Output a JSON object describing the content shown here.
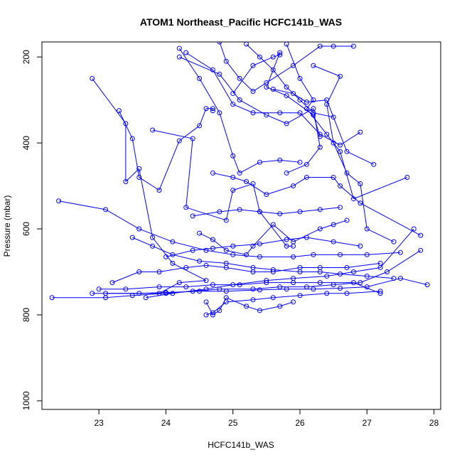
{
  "chart_data": {
    "type": "line",
    "title": "ATOM1 Northeast_Pacific HCFC141b_WAS",
    "xlabel": "HCFC141b_WAS",
    "ylabel": "Pressure (mbar)",
    "xlim": [
      22.15,
      28.1
    ],
    "ylim": [
      1020,
      165
    ],
    "y_reversed": true,
    "x_ticks": [
      23,
      24,
      25,
      26,
      27,
      28
    ],
    "y_ticks": [
      200,
      400,
      600,
      800,
      1000
    ],
    "grid": false,
    "legend": "none",
    "series_color": "#0000ff",
    "series": [
      {
        "x": [
          22.9,
          23.4,
          23.4,
          23.6,
          23.8,
          24.1,
          24.6,
          24.2,
          23.9,
          22.9
        ],
        "y": [
          250,
          355,
          490,
          460,
          620,
          680,
          720,
          725,
          750,
          750
        ]
      },
      {
        "x": [
          23.3,
          23.5,
          23.6,
          23.9,
          24.2,
          24.5,
          24.6,
          24.7,
          24.7
        ],
        "y": [
          325,
          390,
          480,
          510,
          395,
          360,
          320,
          320,
          325
        ]
      },
      {
        "x": [
          23.8,
          24.4,
          24.3,
          24.9,
          25.0,
          25.3,
          25.4,
          25.8,
          25.9
        ],
        "y": [
          370,
          390,
          550,
          580,
          510,
          495,
          560,
          640,
          640
        ]
      },
      {
        "x": [
          24.2,
          24.8,
          25.1,
          25.5,
          25.8,
          26.2,
          26.3,
          26.1,
          25.8
        ],
        "y": [
          200,
          240,
          300,
          335,
          355,
          320,
          410,
          450,
          470
        ]
      },
      {
        "x": [
          24.3,
          24.7,
          25.0,
          25.3,
          25.7,
          26.0,
          26.3,
          26.6,
          26.9
        ],
        "y": [
          190,
          230,
          310,
          330,
          330,
          330,
          380,
          405,
          375
        ]
      },
      {
        "x": [
          24.5,
          24.7,
          24.9,
          25.2,
          25.3,
          25.6,
          25.9,
          26.3,
          26.5,
          26.7
        ],
        "y": [
          610,
          625,
          650,
          660,
          640,
          590,
          630,
          600,
          590,
          580
        ]
      },
      {
        "x": [
          25.0,
          25.3,
          25.6,
          25.7,
          25.7,
          25.5,
          25.8,
          26.2,
          26.3
        ],
        "y": [
          285,
          220,
          200,
          195,
          190,
          270,
          290,
          335,
          385
        ]
      },
      {
        "x": [
          25.6,
          25.9,
          26.1,
          26.4,
          26.7,
          27.1
        ],
        "y": [
          275,
          285,
          305,
          300,
          420,
          450
        ]
      },
      {
        "x": [
          26.2,
          26.6,
          26.4,
          26.5,
          26.7,
          26.9,
          27.0,
          27.4
        ],
        "y": [
          220,
          245,
          310,
          400,
          470,
          495,
          600,
          630
        ]
      },
      {
        "x": [
          25.8,
          26.0,
          26.2,
          26.1,
          26.4,
          26.6,
          26.8,
          27.6
        ],
        "y": [
          170,
          250,
          300,
          320,
          380,
          420,
          530,
          480
        ]
      },
      {
        "x": [
          22.4,
          23.1,
          23.6,
          24.1,
          24.6,
          25.0,
          25.4,
          25.9,
          26.2,
          26.6,
          27.0,
          27.5
        ],
        "y": [
          535,
          555,
          600,
          630,
          650,
          660,
          665,
          665,
          660,
          660,
          660,
          655
        ]
      },
      {
        "x": [
          23.2,
          23.6,
          23.9,
          24.3,
          24.6,
          24.9,
          25.3,
          25.6,
          26.0,
          26.3,
          26.7,
          27.2
        ],
        "y": [
          725,
          700,
          700,
          690,
          685,
          690,
          700,
          700,
          690,
          690,
          690,
          680
        ]
      },
      {
        "x": [
          22.3,
          23.1,
          23.5,
          24.0,
          24.4,
          24.8,
          25.3,
          25.7,
          26.1,
          26.5,
          26.9,
          27.3,
          27.8
        ],
        "y": [
          760,
          760,
          755,
          750,
          745,
          740,
          740,
          735,
          735,
          730,
          725,
          700,
          650
        ]
      },
      {
        "x": [
          23.0,
          23.4,
          23.9,
          24.3,
          24.7,
          25.1,
          25.5,
          25.9,
          26.3,
          26.8,
          27.2
        ],
        "y": [
          740,
          740,
          735,
          735,
          730,
          730,
          725,
          725,
          725,
          725,
          750
        ]
      },
      {
        "x": [
          23.1,
          23.6,
          24.0,
          24.5,
          24.9,
          25.4,
          25.8,
          26.2,
          26.6,
          27.0,
          27.5,
          27.9
        ],
        "y": [
          750,
          750,
          748,
          745,
          745,
          742,
          740,
          740,
          738,
          735,
          715,
          730
        ]
      },
      {
        "x": [
          23.7,
          24.1,
          24.6,
          25.0,
          25.5,
          25.9,
          26.4,
          26.8,
          27.2,
          27.7
        ],
        "y": [
          760,
          750,
          740,
          730,
          720,
          715,
          710,
          700,
          690,
          600
        ]
      },
      {
        "x": [
          24.0,
          24.4,
          24.7,
          25.0,
          25.4,
          25.8,
          26.1,
          26.5,
          26.9
        ],
        "y": [
          665,
          650,
          645,
          640,
          635,
          625,
          620,
          630,
          640
        ]
      },
      {
        "x": [
          24.4,
          24.8,
          25.1,
          25.4,
          25.7,
          26.0,
          26.3,
          26.6
        ],
        "y": [
          570,
          560,
          555,
          560,
          565,
          560,
          555,
          550
        ]
      },
      {
        "x": [
          24.7,
          25.0,
          25.2,
          25.5,
          25.9,
          26.1,
          26.5,
          26.6,
          26.9,
          27.8
        ],
        "y": [
          470,
          480,
          490,
          520,
          500,
          480,
          480,
          500,
          540,
          615
        ]
      },
      {
        "x": [
          24.6,
          24.7,
          24.8,
          24.9,
          25.2,
          25.4,
          25.7,
          25.9
        ],
        "y": [
          770,
          800,
          790,
          760,
          780,
          790,
          780,
          770
        ]
      },
      {
        "x": [
          24.6,
          24.7,
          24.9,
          25.3,
          25.6,
          26.0,
          26.4,
          26.7,
          27.2
        ],
        "y": [
          800,
          795,
          770,
          765,
          760,
          755,
          750,
          750,
          745
        ]
      },
      {
        "x": [
          24.2,
          24.5,
          24.8,
          25.0,
          25.1,
          25.4,
          25.7,
          26.0
        ],
        "y": [
          180,
          250,
          330,
          430,
          470,
          445,
          440,
          445
        ]
      },
      {
        "x": [
          24.8,
          24.9,
          25.1,
          25.3,
          25.5,
          25.9,
          26.3,
          26.5,
          26.8
        ],
        "y": [
          165,
          210,
          250,
          280,
          260,
          220,
          175,
          175,
          175
        ]
      },
      {
        "x": [
          25.2,
          25.4,
          25.6,
          25.8,
          26.0,
          26.2,
          26.5
        ],
        "y": [
          170,
          200,
          230,
          270,
          300,
          330,
          340
        ]
      },
      {
        "x": [
          23.5,
          23.8,
          24.1,
          24.5,
          24.9,
          25.3,
          25.6,
          26.0,
          26.3,
          26.6,
          27.0,
          27.4
        ],
        "y": [
          620,
          640,
          660,
          675,
          680,
          690,
          695,
          700,
          700,
          705,
          710,
          715
        ]
      }
    ]
  }
}
